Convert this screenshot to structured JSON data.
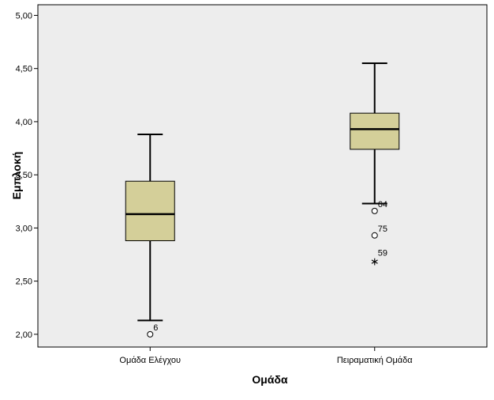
{
  "chart_data": {
    "type": "boxplot",
    "xlabel": "Ομάδα",
    "ylabel": "Εμπλοκή",
    "ylim": [
      1.88,
      5.1
    ],
    "yticks": [
      "2,00",
      "2,50",
      "3,00",
      "3,50",
      "4,00",
      "4,50",
      "5,00"
    ],
    "ytick_values": [
      2.0,
      2.5,
      3.0,
      3.5,
      4.0,
      4.5,
      5.0
    ],
    "grid": false,
    "colors": {
      "box_fill": "#d4cf99",
      "plot_bg": "#ededed",
      "line": "#000000"
    },
    "categories": [
      "Ομάδα Ελέγχου",
      "Πειραματική Ομάδα"
    ],
    "groups": [
      {
        "name": "Ομάδα Ελέγχου",
        "whisker_low": 2.13,
        "q1": 2.88,
        "median": 3.13,
        "q3": 3.44,
        "whisker_high": 3.88,
        "outliers": [
          {
            "value": 2.0,
            "label": "6",
            "marker": "circle"
          }
        ]
      },
      {
        "name": "Πειραματική Ομάδα",
        "whisker_low": 3.23,
        "q1": 3.74,
        "median": 3.93,
        "q3": 4.08,
        "whisker_high": 4.55,
        "outliers": [
          {
            "value": 3.16,
            "label": "64",
            "marker": "circle"
          },
          {
            "value": 2.93,
            "label": "75",
            "marker": "circle"
          },
          {
            "value": 2.7,
            "label": "59",
            "marker": "star"
          }
        ]
      }
    ]
  }
}
